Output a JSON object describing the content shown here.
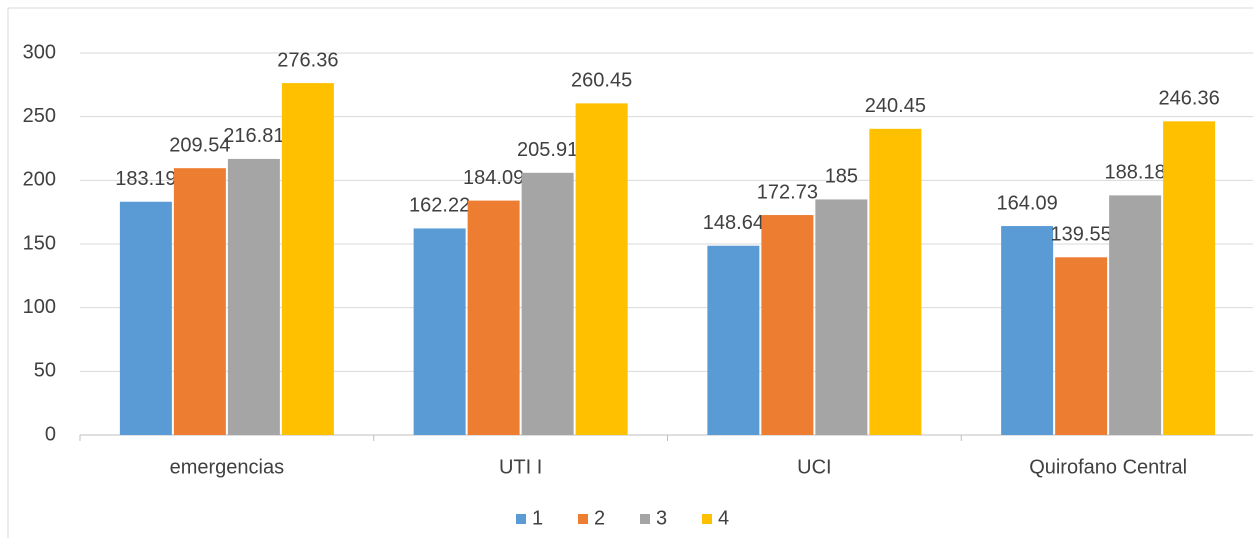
{
  "chart_data": {
    "type": "bar",
    "categories": [
      "emergencias",
      "UTI I",
      "UCI",
      "Quirofano Central"
    ],
    "series": [
      {
        "name": "1",
        "color": "#5b9bd5",
        "values": [
          183.19,
          162.22,
          148.64,
          164.09
        ]
      },
      {
        "name": "2",
        "color": "#ed7d31",
        "values": [
          209.54,
          184.09,
          172.73,
          139.55
        ]
      },
      {
        "name": "3",
        "color": "#a5a5a5",
        "values": [
          216.81,
          205.91,
          185,
          188.18
        ]
      },
      {
        "name": "4",
        "color": "#ffc000",
        "values": [
          276.36,
          260.45,
          240.45,
          246.36
        ]
      }
    ],
    "ylim": [
      0,
      300
    ],
    "yticks": [
      0,
      50,
      100,
      150,
      200,
      250,
      300
    ],
    "grid": true,
    "legend": "bottom"
  }
}
